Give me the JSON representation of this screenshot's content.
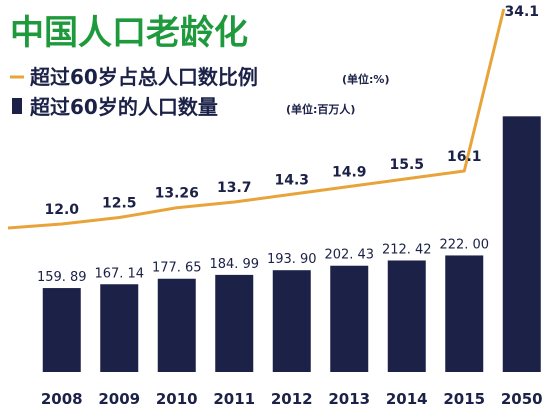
{
  "chart_data": {
    "type": "bar",
    "title": "中国人口老龄化",
    "categories": [
      "2008",
      "2009",
      "2010",
      "2011",
      "2012",
      "2013",
      "2014",
      "2015",
      "2050"
    ],
    "series": [
      {
        "name": "超过60岁的人口数量",
        "unit": "(单位:百万人)",
        "values": [
          159.89,
          167.14,
          177.65,
          184.99,
          193.9,
          202.43,
          212.42,
          222.0,
          487
        ],
        "labels": [
          "159. 89",
          "167. 14",
          "177. 65",
          "184. 99",
          "193. 90",
          "202. 43",
          "212. 42",
          "222. 00",
          ""
        ]
      },
      {
        "name": "超过60岁占总人口数比例",
        "unit": "(单位:%)",
        "values": [
          12.0,
          12.5,
          13.26,
          13.7,
          14.3,
          14.9,
          15.5,
          16.1,
          34.1
        ],
        "labels": [
          "12.0",
          "12.5",
          "13.26",
          "13.7",
          "14.3",
          "14.9",
          "15.5",
          "16.1",
          "34.1"
        ]
      }
    ],
    "legend_position": "top-left",
    "grid": false,
    "colors": {
      "title": "#1e9a3c",
      "bar": "#1b2147",
      "line": "#e8a43a",
      "legend_bullet": "#1b2147",
      "legend_line": "#e8a43a"
    }
  }
}
